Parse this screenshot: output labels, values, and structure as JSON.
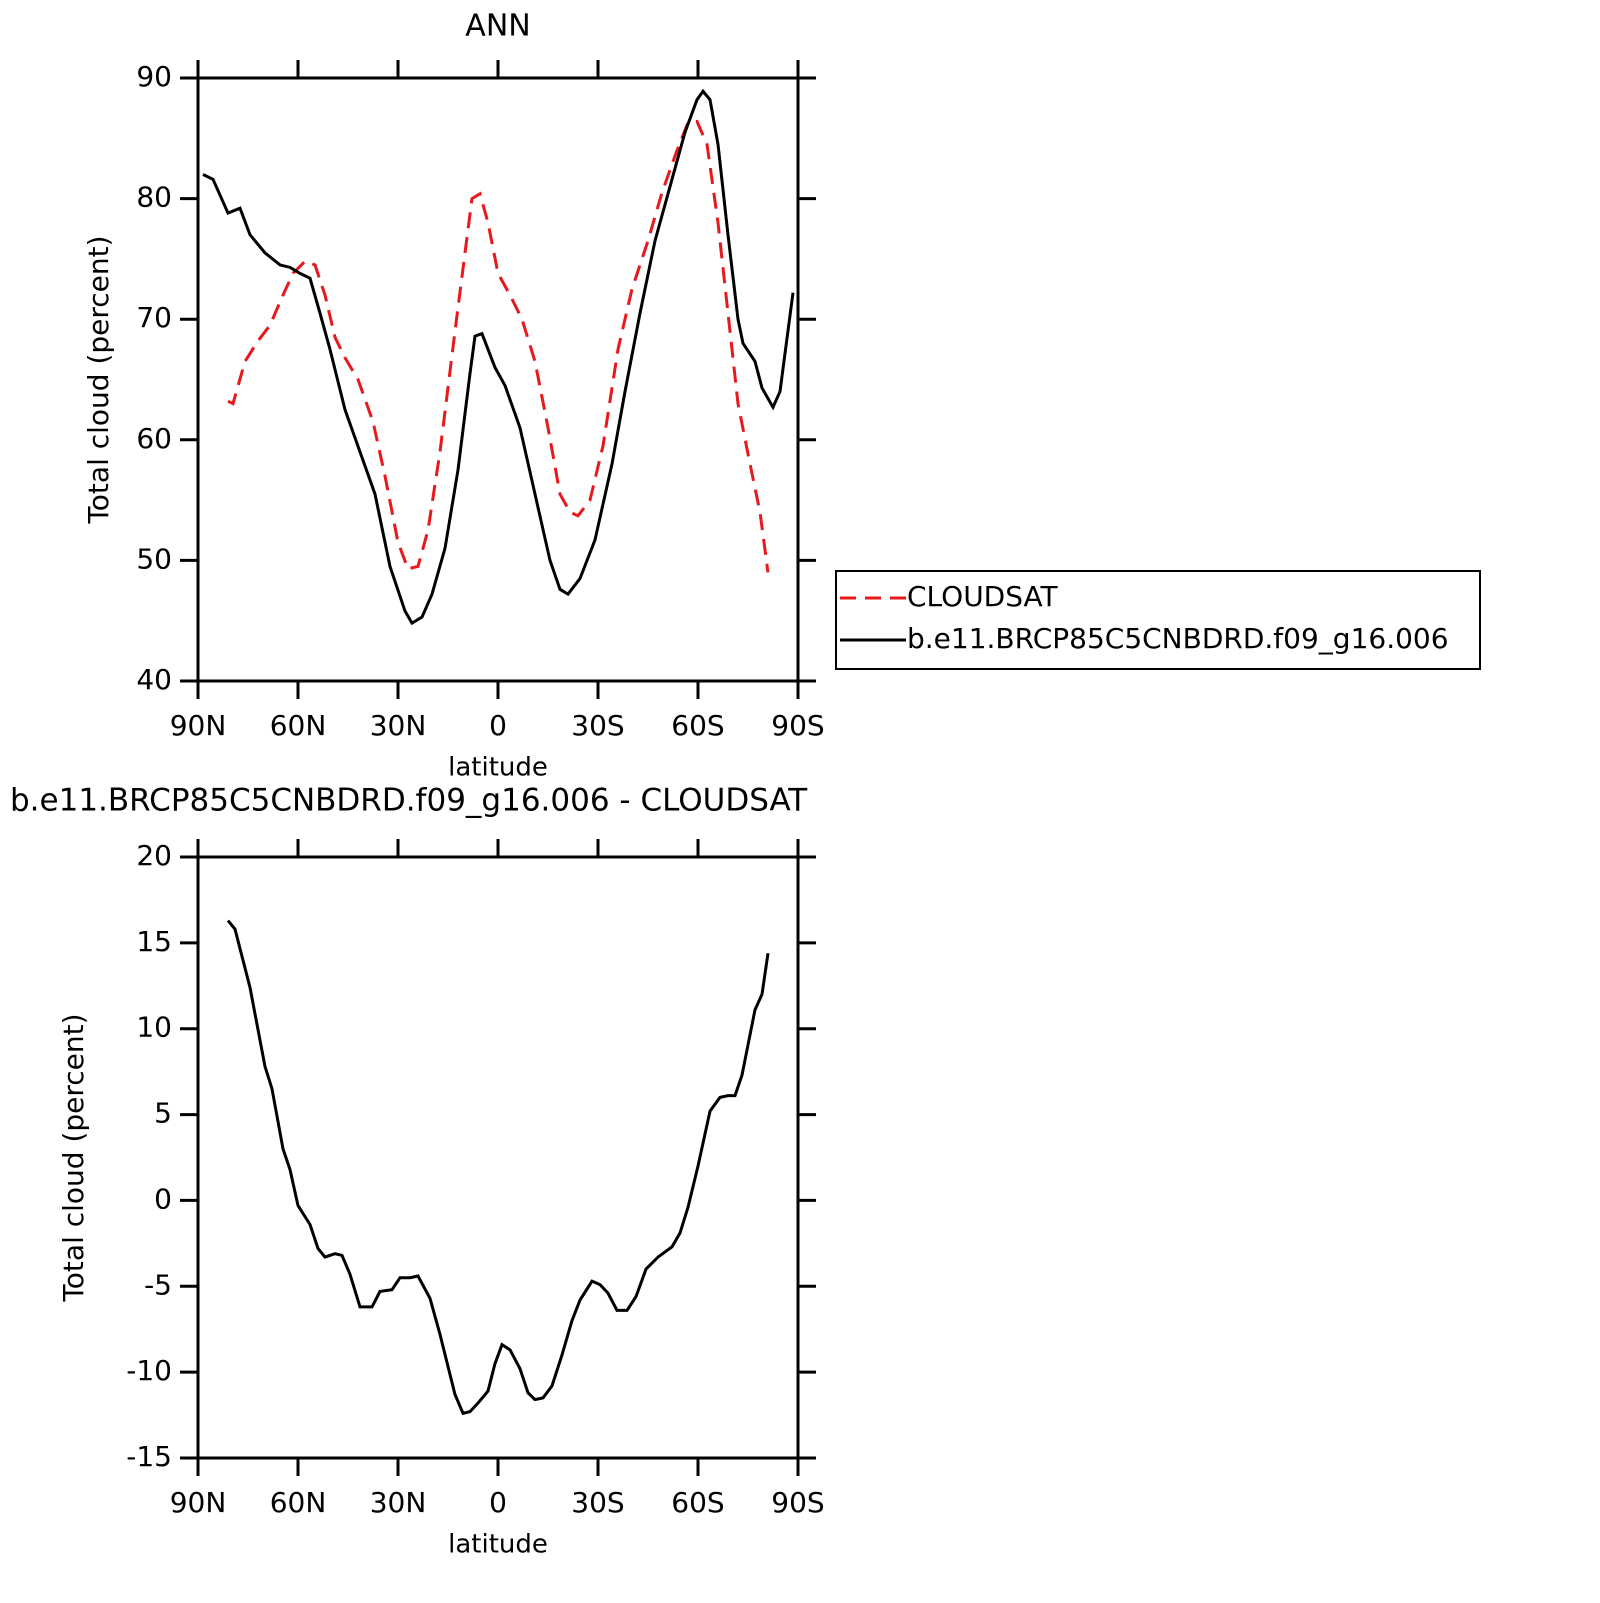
{
  "chart_data": [
    {
      "type": "line",
      "title": "ANN",
      "xlabel": "latitude",
      "ylabel": "Total cloud (percent)",
      "xlim": [
        90,
        -90
      ],
      "xticks": [
        {
          "value": 90,
          "label": "90N"
        },
        {
          "value": 60,
          "label": "60N"
        },
        {
          "value": 30,
          "label": "30N"
        },
        0,
        {
          "value": -30,
          "label": "30S"
        },
        {
          "value": -60,
          "label": "60S"
        },
        {
          "value": -90,
          "label": "90S"
        }
      ],
      "ylim": [
        40,
        90
      ],
      "yticks": [
        40,
        50,
        60,
        70,
        80,
        90
      ],
      "legend": "right",
      "series": [
        {
          "name": "CLOUDSAT",
          "color": "#e8191c",
          "linestyle": "dashed",
          "x": [
            81,
            79.5,
            75.9,
            72,
            68.4,
            64.5,
            61.5,
            57.9,
            54.9,
            51.9,
            48.9,
            45.9,
            42,
            37.5,
            33.9,
            30,
            27,
            24,
            21,
            17.4,
            12.9,
            9.9,
            7.8,
            5.4,
            3,
            0,
            -3.6,
            -7.2,
            -11.1,
            -15,
            -18.6,
            -21.6,
            -24,
            -27.6,
            -31.5,
            -36,
            -40.2,
            -45,
            -49.2,
            -53.7,
            -57,
            -59.7,
            -62.7,
            -66,
            -69,
            -72,
            -75.6,
            -78.6,
            -81
          ],
          "values": [
            63.2,
            63,
            66.5,
            68.2,
            69.5,
            72,
            73.8,
            74.8,
            74.5,
            72,
            68.5,
            66.8,
            65,
            61.5,
            57,
            51.5,
            49.3,
            49.5,
            52.5,
            59,
            69,
            75.5,
            80,
            80.4,
            78,
            73.8,
            72,
            70,
            66.5,
            61,
            55.5,
            54,
            53.7,
            55,
            59.5,
            67.5,
            72.5,
            76.5,
            80.5,
            84,
            86.3,
            86.4,
            84.5,
            78,
            70.5,
            63,
            58,
            54,
            49
          ]
        },
        {
          "name": "b.e11.BRCP85C5CNBDRD.f09_g16.006",
          "color": "#000000",
          "linestyle": "solid",
          "x": [
            88.5,
            85.5,
            81,
            77.4,
            74.4,
            69.9,
            65.4,
            62.4,
            59.4,
            56.4,
            53.4,
            50.4,
            45.9,
            41.4,
            36.9,
            32.4,
            27.9,
            25.8,
            22.8,
            19.8,
            15.9,
            12,
            8.4,
            6.9,
            4.8,
            0.9,
            -2.1,
            -6.6,
            -11.1,
            -15.6,
            -18.6,
            -21,
            -24.6,
            -29.1,
            -34.2,
            -38.1,
            -42.6,
            -47.1,
            -51.6,
            -56.1,
            -59.7,
            -61.5,
            -63.6,
            -66,
            -69,
            -72,
            -73.5,
            -77.1,
            -79.2,
            -82.5,
            -84.6,
            -88.5
          ],
          "values": [
            82,
            81.6,
            78.8,
            79.2,
            77,
            75.5,
            74.5,
            74.3,
            73.8,
            73.4,
            70.5,
            67.5,
            62.5,
            59,
            55.5,
            49.5,
            45.8,
            44.8,
            45.3,
            47.2,
            51,
            57.5,
            65.5,
            68.6,
            68.8,
            66,
            64.5,
            61,
            55.5,
            50,
            47.6,
            47.2,
            48.5,
            51.7,
            58,
            64,
            70.5,
            76.5,
            81,
            85.5,
            88.2,
            88.9,
            88.2,
            84.5,
            77,
            70,
            68,
            66.5,
            64.3,
            62.7,
            64,
            72.2
          ]
        }
      ]
    },
    {
      "type": "line",
      "title": "b.e11.BRCP85C5CNBDRD.f09_g16.006 - CLOUDSAT",
      "xlabel": "latitude",
      "ylabel": "Total cloud (percent)",
      "xlim": [
        90,
        -90
      ],
      "xticks": [
        {
          "value": 90,
          "label": "90N"
        },
        {
          "value": 60,
          "label": "60N"
        },
        {
          "value": 30,
          "label": "30N"
        },
        0,
        {
          "value": -30,
          "label": "30S"
        },
        {
          "value": -60,
          "label": "60S"
        },
        {
          "value": -90,
          "label": "90S"
        }
      ],
      "ylim": [
        -15,
        20
      ],
      "yticks": [
        -15,
        -10,
        -5,
        0,
        5,
        10,
        15,
        20
      ],
      "series": [
        {
          "color": "#000000",
          "linestyle": "solid",
          "x": [
            81,
            78.9,
            74.4,
            69.9,
            67.8,
            64.5,
            62.4,
            60,
            56.4,
            54,
            51.9,
            48.9,
            46.8,
            44.4,
            41.4,
            37.8,
            35.4,
            31.8,
            29.4,
            26.4,
            24,
            20.4,
            17.4,
            12.9,
            10.5,
            8.4,
            6,
            3,
            0.9,
            -1.2,
            -3.6,
            -6.6,
            -9,
            -11.1,
            -13.5,
            -16.2,
            -19.2,
            -22.2,
            -24.6,
            -28.2,
            -30.6,
            -33,
            -35.7,
            -38.7,
            -41.4,
            -44.4,
            -48,
            -52.2,
            -54.6,
            -57,
            -60,
            -63.6,
            -66.6,
            -69,
            -71.1,
            -73.2,
            -77.1,
            -79.2,
            -81
          ],
          "values": [
            16.3,
            15.8,
            12.4,
            7.8,
            6.5,
            3,
            1.8,
            -0.3,
            -1.4,
            -2.8,
            -3.3,
            -3.1,
            -3.2,
            -4.3,
            -6.2,
            -6.2,
            -5.3,
            -5.2,
            -4.5,
            -4.5,
            -4.4,
            -5.7,
            -7.8,
            -11.3,
            -12.4,
            -12.3,
            -11.8,
            -11.1,
            -9.5,
            -8.4,
            -8.7,
            -9.8,
            -11.2,
            -11.6,
            -11.5,
            -10.8,
            -9,
            -7,
            -5.8,
            -4.7,
            -4.9,
            -5.4,
            -6.4,
            -6.4,
            -5.6,
            -4,
            -3.3,
            -2.7,
            -1.9,
            -0.4,
            2,
            5.2,
            6,
            6.1,
            6.1,
            7.3,
            11.1,
            12,
            14.4
          ]
        }
      ]
    }
  ]
}
